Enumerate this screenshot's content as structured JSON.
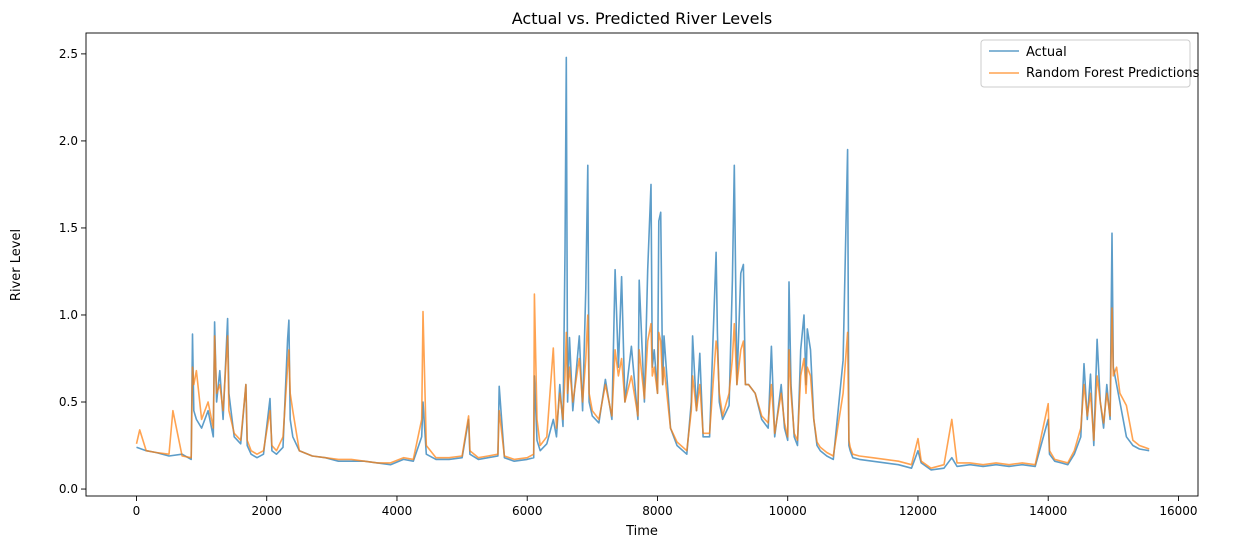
{
  "chart_data": {
    "type": "line",
    "title": "Actual vs. Predicted River Levels",
    "xlabel": "Time",
    "ylabel": "River Level",
    "xlim": [
      -775,
      16300
    ],
    "ylim": [
      -0.04,
      2.62
    ],
    "xticks": [
      0,
      2000,
      4000,
      6000,
      8000,
      10000,
      12000,
      14000,
      16000
    ],
    "xtick_labels": [
      "0",
      "2000",
      "4000",
      "6000",
      "8000",
      "10000",
      "12000",
      "14000",
      "16000"
    ],
    "yticks": [
      0.0,
      0.5,
      1.0,
      1.5,
      2.0,
      2.5
    ],
    "ytick_labels": [
      "0.0",
      "0.5",
      "1.0",
      "1.5",
      "2.0",
      "2.5"
    ],
    "grid": false,
    "legend_position": "top-right",
    "series": [
      {
        "name": "Actual",
        "color": "#1f77b4",
        "x": [
          0,
          150,
          300,
          500,
          700,
          840,
          860,
          880,
          920,
          1000,
          1100,
          1180,
          1200,
          1230,
          1280,
          1330,
          1400,
          1420,
          1500,
          1600,
          1680,
          1700,
          1760,
          1850,
          1950,
          2050,
          2080,
          2150,
          2250,
          2320,
          2340,
          2360,
          2400,
          2500,
          2700,
          2900,
          3100,
          3300,
          3500,
          3700,
          3900,
          4100,
          4250,
          4380,
          4400,
          4450,
          4600,
          4800,
          5000,
          5100,
          5120,
          5250,
          5400,
          5550,
          5570,
          5650,
          5800,
          6000,
          6100,
          6110,
          6150,
          6200,
          6300,
          6400,
          6450,
          6500,
          6550,
          6580,
          6600,
          6620,
          6650,
          6700,
          6800,
          6850,
          6900,
          6930,
          6950,
          7000,
          7100,
          7200,
          7300,
          7350,
          7400,
          7450,
          7500,
          7600,
          7700,
          7720,
          7800,
          7850,
          7900,
          7920,
          7950,
          8000,
          8020,
          8050,
          8080,
          8100,
          8200,
          8300,
          8450,
          8520,
          8540,
          8600,
          8650,
          8700,
          8800,
          8900,
          8920,
          8950,
          9000,
          9100,
          9150,
          9180,
          9220,
          9280,
          9320,
          9350,
          9400,
          9500,
          9600,
          9700,
          9750,
          9800,
          9900,
          9950,
          10000,
          10020,
          10050,
          10100,
          10150,
          10200,
          10250,
          10280,
          10300,
          10350,
          10400,
          10450,
          10500,
          10600,
          10700,
          10850,
          10920,
          10940,
          10960,
          11000,
          11100,
          11300,
          11500,
          11700,
          11900,
          12000,
          12050,
          12200,
          12400,
          12520,
          12600,
          12800,
          13000,
          13200,
          13400,
          13600,
          13800,
          14000,
          14020,
          14100,
          14200,
          14300,
          14400,
          14500,
          14550,
          14600,
          14650,
          14700,
          14750,
          14800,
          14850,
          14900,
          14950,
          14980,
          15000,
          15050,
          15100,
          15200,
          15300,
          15400,
          15550
        ],
        "y": [
          0.24,
          0.22,
          0.21,
          0.19,
          0.2,
          0.17,
          0.89,
          0.45,
          0.4,
          0.35,
          0.45,
          0.3,
          0.96,
          0.5,
          0.68,
          0.4,
          0.98,
          0.55,
          0.3,
          0.26,
          0.6,
          0.25,
          0.2,
          0.18,
          0.2,
          0.52,
          0.22,
          0.2,
          0.24,
          0.86,
          0.97,
          0.4,
          0.3,
          0.22,
          0.19,
          0.18,
          0.16,
          0.16,
          0.16,
          0.15,
          0.14,
          0.17,
          0.16,
          0.3,
          0.5,
          0.2,
          0.17,
          0.17,
          0.18,
          0.4,
          0.2,
          0.17,
          0.18,
          0.19,
          0.59,
          0.18,
          0.16,
          0.17,
          0.18,
          0.65,
          0.28,
          0.22,
          0.26,
          0.4,
          0.3,
          0.6,
          0.36,
          1.36,
          2.48,
          0.5,
          0.87,
          0.45,
          0.88,
          0.45,
          1.15,
          1.86,
          0.5,
          0.42,
          0.38,
          0.63,
          0.4,
          1.26,
          0.7,
          1.22,
          0.5,
          0.82,
          0.4,
          1.2,
          0.5,
          1.26,
          1.75,
          0.7,
          0.8,
          0.55,
          1.54,
          1.59,
          0.6,
          0.88,
          0.35,
          0.25,
          0.2,
          0.5,
          0.88,
          0.45,
          0.78,
          0.3,
          0.3,
          1.36,
          0.9,
          0.5,
          0.4,
          0.48,
          1.2,
          1.86,
          0.6,
          1.24,
          1.29,
          0.6,
          0.6,
          0.55,
          0.4,
          0.35,
          0.82,
          0.3,
          0.6,
          0.35,
          0.28,
          1.19,
          0.6,
          0.3,
          0.25,
          0.8,
          1.0,
          0.6,
          0.92,
          0.8,
          0.4,
          0.25,
          0.22,
          0.19,
          0.17,
          0.74,
          1.95,
          0.25,
          0.22,
          0.18,
          0.17,
          0.16,
          0.15,
          0.14,
          0.12,
          0.22,
          0.15,
          0.11,
          0.12,
          0.18,
          0.13,
          0.14,
          0.13,
          0.14,
          0.13,
          0.14,
          0.13,
          0.4,
          0.2,
          0.16,
          0.15,
          0.14,
          0.2,
          0.3,
          0.72,
          0.4,
          0.66,
          0.25,
          0.86,
          0.5,
          0.35,
          0.6,
          0.4,
          1.47,
          0.7,
          0.6,
          0.5,
          0.3,
          0.25,
          0.23,
          0.22
        ]
      },
      {
        "name": "Random Forest Predictions",
        "color": "#ff7f0e",
        "x": [
          0,
          50,
          150,
          300,
          500,
          560,
          700,
          840,
          860,
          880,
          920,
          1000,
          1100,
          1180,
          1200,
          1230,
          1280,
          1330,
          1400,
          1420,
          1500,
          1600,
          1680,
          1700,
          1760,
          1850,
          1950,
          2050,
          2080,
          2150,
          2250,
          2320,
          2340,
          2360,
          2400,
          2500,
          2700,
          2900,
          3100,
          3300,
          3500,
          3700,
          3900,
          4100,
          4250,
          4380,
          4400,
          4450,
          4600,
          4800,
          5000,
          5100,
          5120,
          5250,
          5400,
          5550,
          5570,
          5650,
          5800,
          6000,
          6100,
          6110,
          6150,
          6200,
          6300,
          6400,
          6450,
          6500,
          6550,
          6580,
          6600,
          6620,
          6650,
          6700,
          6800,
          6850,
          6900,
          6930,
          6950,
          7000,
          7100,
          7200,
          7300,
          7350,
          7400,
          7450,
          7500,
          7600,
          7700,
          7720,
          7800,
          7850,
          7900,
          7920,
          7950,
          8000,
          8020,
          8050,
          8080,
          8100,
          8200,
          8300,
          8450,
          8520,
          8540,
          8600,
          8650,
          8700,
          8800,
          8900,
          8920,
          8950,
          9000,
          9100,
          9150,
          9180,
          9220,
          9280,
          9320,
          9350,
          9400,
          9500,
          9600,
          9700,
          9750,
          9800,
          9900,
          9950,
          10000,
          10020,
          10050,
          10100,
          10150,
          10200,
          10250,
          10280,
          10300,
          10350,
          10400,
          10450,
          10500,
          10600,
          10700,
          10850,
          10920,
          10940,
          10960,
          11000,
          11100,
          11300,
          11500,
          11700,
          11900,
          12000,
          12050,
          12200,
          12400,
          12520,
          12600,
          12800,
          13000,
          13200,
          13400,
          13600,
          13800,
          14000,
          14020,
          14100,
          14200,
          14300,
          14400,
          14500,
          14550,
          14600,
          14650,
          14700,
          14750,
          14800,
          14850,
          14900,
          14950,
          14980,
          15000,
          15050,
          15100,
          15200,
          15300,
          15400,
          15550
        ],
        "y": [
          0.26,
          0.34,
          0.22,
          0.21,
          0.2,
          0.45,
          0.19,
          0.18,
          0.7,
          0.6,
          0.68,
          0.4,
          0.5,
          0.35,
          0.88,
          0.55,
          0.6,
          0.45,
          0.88,
          0.45,
          0.32,
          0.28,
          0.6,
          0.28,
          0.22,
          0.2,
          0.22,
          0.45,
          0.25,
          0.22,
          0.3,
          0.7,
          0.8,
          0.55,
          0.45,
          0.22,
          0.19,
          0.18,
          0.17,
          0.17,
          0.16,
          0.15,
          0.15,
          0.18,
          0.17,
          0.4,
          1.02,
          0.25,
          0.18,
          0.18,
          0.19,
          0.42,
          0.22,
          0.18,
          0.19,
          0.2,
          0.45,
          0.19,
          0.17,
          0.18,
          0.2,
          1.12,
          0.4,
          0.25,
          0.3,
          0.81,
          0.35,
          0.55,
          0.4,
          0.65,
          0.9,
          0.55,
          0.7,
          0.5,
          0.75,
          0.5,
          0.75,
          1.0,
          0.55,
          0.45,
          0.4,
          0.6,
          0.42,
          0.8,
          0.65,
          0.75,
          0.5,
          0.65,
          0.42,
          0.8,
          0.52,
          0.85,
          0.95,
          0.65,
          0.7,
          0.55,
          0.9,
          0.85,
          0.6,
          0.7,
          0.35,
          0.27,
          0.22,
          0.45,
          0.65,
          0.45,
          0.6,
          0.32,
          0.32,
          0.85,
          0.8,
          0.55,
          0.42,
          0.55,
          0.75,
          0.95,
          0.6,
          0.8,
          0.85,
          0.6,
          0.6,
          0.55,
          0.42,
          0.38,
          0.6,
          0.32,
          0.55,
          0.38,
          0.3,
          0.8,
          0.55,
          0.32,
          0.28,
          0.65,
          0.75,
          0.55,
          0.7,
          0.65,
          0.4,
          0.27,
          0.24,
          0.21,
          0.19,
          0.55,
          0.9,
          0.28,
          0.24,
          0.2,
          0.19,
          0.18,
          0.17,
          0.16,
          0.14,
          0.29,
          0.16,
          0.12,
          0.14,
          0.4,
          0.15,
          0.15,
          0.14,
          0.15,
          0.14,
          0.15,
          0.14,
          0.49,
          0.22,
          0.17,
          0.16,
          0.15,
          0.22,
          0.35,
          0.6,
          0.42,
          0.55,
          0.28,
          0.65,
          0.5,
          0.38,
          0.55,
          0.42,
          1.04,
          0.65,
          0.7,
          0.55,
          0.48,
          0.28,
          0.25,
          0.23
        ]
      }
    ]
  }
}
